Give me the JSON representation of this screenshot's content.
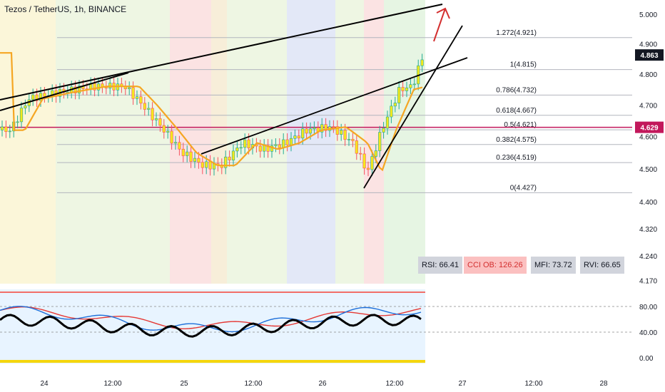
{
  "header": {
    "title": "Tezos / TetherUS, 1h, BINANCE"
  },
  "chart_data": [
    {
      "type": "candlestick",
      "title": "Tezos / TetherUS, 1h, BINANCE",
      "y_scale": "log",
      "y_ticks": [
        "5.000",
        "4.900",
        "4.800",
        "4.700",
        "4.600",
        "4.500",
        "4.400",
        "4.320",
        "4.240",
        "4.170"
      ],
      "x_ticks": [
        "24",
        "12:00",
        "25",
        "12:00",
        "26",
        "12:00",
        "27",
        "12:00",
        "28"
      ],
      "last_price": "4.863",
      "hline_price": "4.629",
      "fib_levels": [
        {
          "label": "1.272(4.921)",
          "value": 4.921
        },
        {
          "label": "1(4.815)",
          "value": 4.815
        },
        {
          "label": "0.786(4.732)",
          "value": 4.732
        },
        {
          "label": "0.618(4.667)",
          "value": 4.667
        },
        {
          "label": "0.5(4.621)",
          "value": 4.621
        },
        {
          "label": "0.382(4.575)",
          "value": 4.575
        },
        {
          "label": "0.236(4.519)",
          "value": 4.519
        },
        {
          "label": "0(4.427)",
          "value": 4.427
        }
      ],
      "colors": {
        "bull": "#22ab94",
        "bear": "#f7525f",
        "candle_body": "#f5e81c",
        "ma": "#f5a623",
        "hline": "#c2185b",
        "fib": "#b2b5be"
      }
    },
    {
      "type": "line",
      "y_ticks": [
        "80.00",
        "40.00",
        "0.00"
      ],
      "indicators": {
        "rsi": "RSI: 66.41",
        "cci": "CCI OB: 126.26",
        "mfi": "MFI: 73.72",
        "rvi": "RVI: 66.65"
      }
    }
  ]
}
